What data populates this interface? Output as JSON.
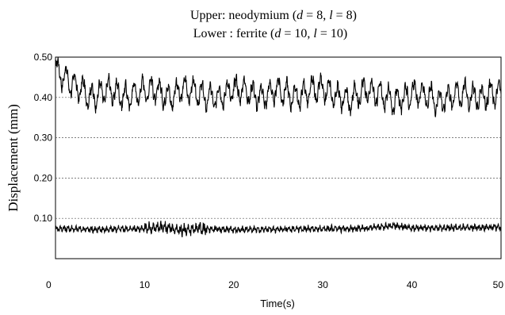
{
  "chart_data": {
    "type": "line",
    "title_upper": {
      "prefix": "Upper: neodymium (",
      "d_symbol": "d",
      "d_eq": " = 8, ",
      "l_symbol": "l",
      "l_eq": " = 8)"
    },
    "title_lower": {
      "prefix": "Lower : ferrite (",
      "d_symbol": "d",
      "d_eq": " = 10, ",
      "l_symbol": "l",
      "l_eq": " = 10)"
    },
    "xlabel": "Time(s)",
    "ylabel": "Displacement (mm)",
    "xlim": [
      0,
      50
    ],
    "ylim": [
      0.0,
      0.5
    ],
    "x_ticks": [
      0,
      10,
      20,
      30,
      40,
      50
    ],
    "x_tick_labels": [
      "0",
      "10",
      "20",
      "30",
      "40",
      "50"
    ],
    "y_ticks": [
      0.1,
      0.2,
      0.3,
      0.4,
      0.5
    ],
    "y_tick_labels": [
      "0.10",
      "0.20",
      "0.30",
      "0.40",
      "0.50"
    ],
    "grid": "dotted horizontal",
    "series": [
      {
        "mean": 0.415,
        "oscillation_amplitude": 0.035,
        "start_value": 0.47,
        "x": [
          0,
          1,
          2,
          3,
          4,
          5,
          6,
          7,
          8,
          9,
          10,
          11,
          12,
          13,
          14,
          15,
          16,
          17,
          18,
          19,
          20,
          21,
          22,
          23,
          24,
          25,
          26,
          27,
          28,
          29,
          30,
          31,
          32,
          33,
          34,
          35,
          36,
          37,
          38,
          39,
          40,
          41,
          42,
          43,
          44,
          45,
          46,
          47,
          48,
          49,
          50
        ],
        "y": [
          0.47,
          0.45,
          0.43,
          0.42,
          0.4,
          0.41,
          0.42,
          0.41,
          0.4,
          0.41,
          0.42,
          0.42,
          0.41,
          0.4,
          0.42,
          0.42,
          0.41,
          0.4,
          0.4,
          0.41,
          0.42,
          0.42,
          0.41,
          0.4,
          0.41,
          0.42,
          0.41,
          0.4,
          0.41,
          0.42,
          0.42,
          0.41,
          0.4,
          0.39,
          0.41,
          0.42,
          0.41,
          0.4,
          0.39,
          0.4,
          0.41,
          0.41,
          0.4,
          0.39,
          0.4,
          0.41,
          0.41,
          0.4,
          0.4,
          0.41,
          0.41
        ]
      },
      {
        "mean": 0.075,
        "oscillation_amplitude": 0.008,
        "x": [
          0,
          5,
          10,
          12,
          14,
          15,
          16,
          20,
          25,
          30,
          35,
          38,
          40,
          45,
          50
        ],
        "y": [
          0.075,
          0.072,
          0.075,
          0.078,
          0.07,
          0.072,
          0.074,
          0.072,
          0.073,
          0.074,
          0.075,
          0.082,
          0.076,
          0.077,
          0.078
        ]
      }
    ],
    "colors": {
      "line": "#000000",
      "grid": "#555555",
      "background": "#ffffff"
    }
  }
}
